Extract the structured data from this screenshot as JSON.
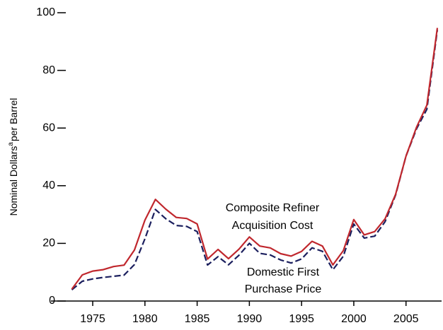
{
  "chart_data": {
    "type": "line",
    "ylabel": {
      "text": "Nominal Dollars",
      "sup": "a",
      "rest": "per Barrel"
    },
    "annotations": [
      {
        "lines": [
          "Composite Refiner",
          "Acquisition Cost"
        ]
      },
      {
        "lines": [
          "Domestic First",
          "Purchase Price"
        ]
      }
    ],
    "x": [
      1973,
      1974,
      1975,
      1976,
      1977,
      1978,
      1979,
      1980,
      1981,
      1982,
      1983,
      1984,
      1985,
      1986,
      1987,
      1988,
      1989,
      1990,
      1991,
      1992,
      1993,
      1994,
      1995,
      1996,
      1997,
      1998,
      1999,
      2000,
      2001,
      2002,
      2003,
      2004,
      2005,
      2006,
      2007,
      2008
    ],
    "series": [
      {
        "name": "Composite Refiner Acquisition Cost",
        "color": "#c0272d",
        "dash": false,
        "values": [
          4.15,
          9.07,
          10.38,
          10.89,
          11.96,
          12.46,
          17.72,
          28.07,
          35.24,
          31.87,
          28.99,
          28.63,
          26.75,
          14.55,
          17.9,
          14.67,
          17.97,
          22.22,
          19.06,
          18.43,
          16.41,
          15.59,
          17.23,
          20.71,
          19.04,
          12.52,
          17.51,
          28.26,
          22.95,
          24.1,
          28.53,
          36.98,
          50.24,
          60.24,
          67.94,
          94.74
        ]
      },
      {
        "name": "Domestic First Purchase Price",
        "color": "#1b1f5e",
        "dash": true,
        "values": [
          3.89,
          6.87,
          7.67,
          8.19,
          8.57,
          9.0,
          12.64,
          21.59,
          31.77,
          28.52,
          26.19,
          25.88,
          24.09,
          12.51,
          15.4,
          12.58,
          15.86,
          20.03,
          16.54,
          15.99,
          14.25,
          13.19,
          14.62,
          18.46,
          17.23,
          10.87,
          15.56,
          26.72,
          21.84,
          22.51,
          27.56,
          36.77,
          50.28,
          59.69,
          66.52,
          94.04
        ]
      }
    ],
    "xlim": [
      1973,
      2008
    ],
    "xticks": [
      1975,
      1980,
      1985,
      1990,
      1995,
      2000,
      2005
    ],
    "ylim": [
      0,
      100
    ],
    "yticks": [
      0,
      20,
      40,
      60,
      80,
      100
    ],
    "grid": false
  }
}
